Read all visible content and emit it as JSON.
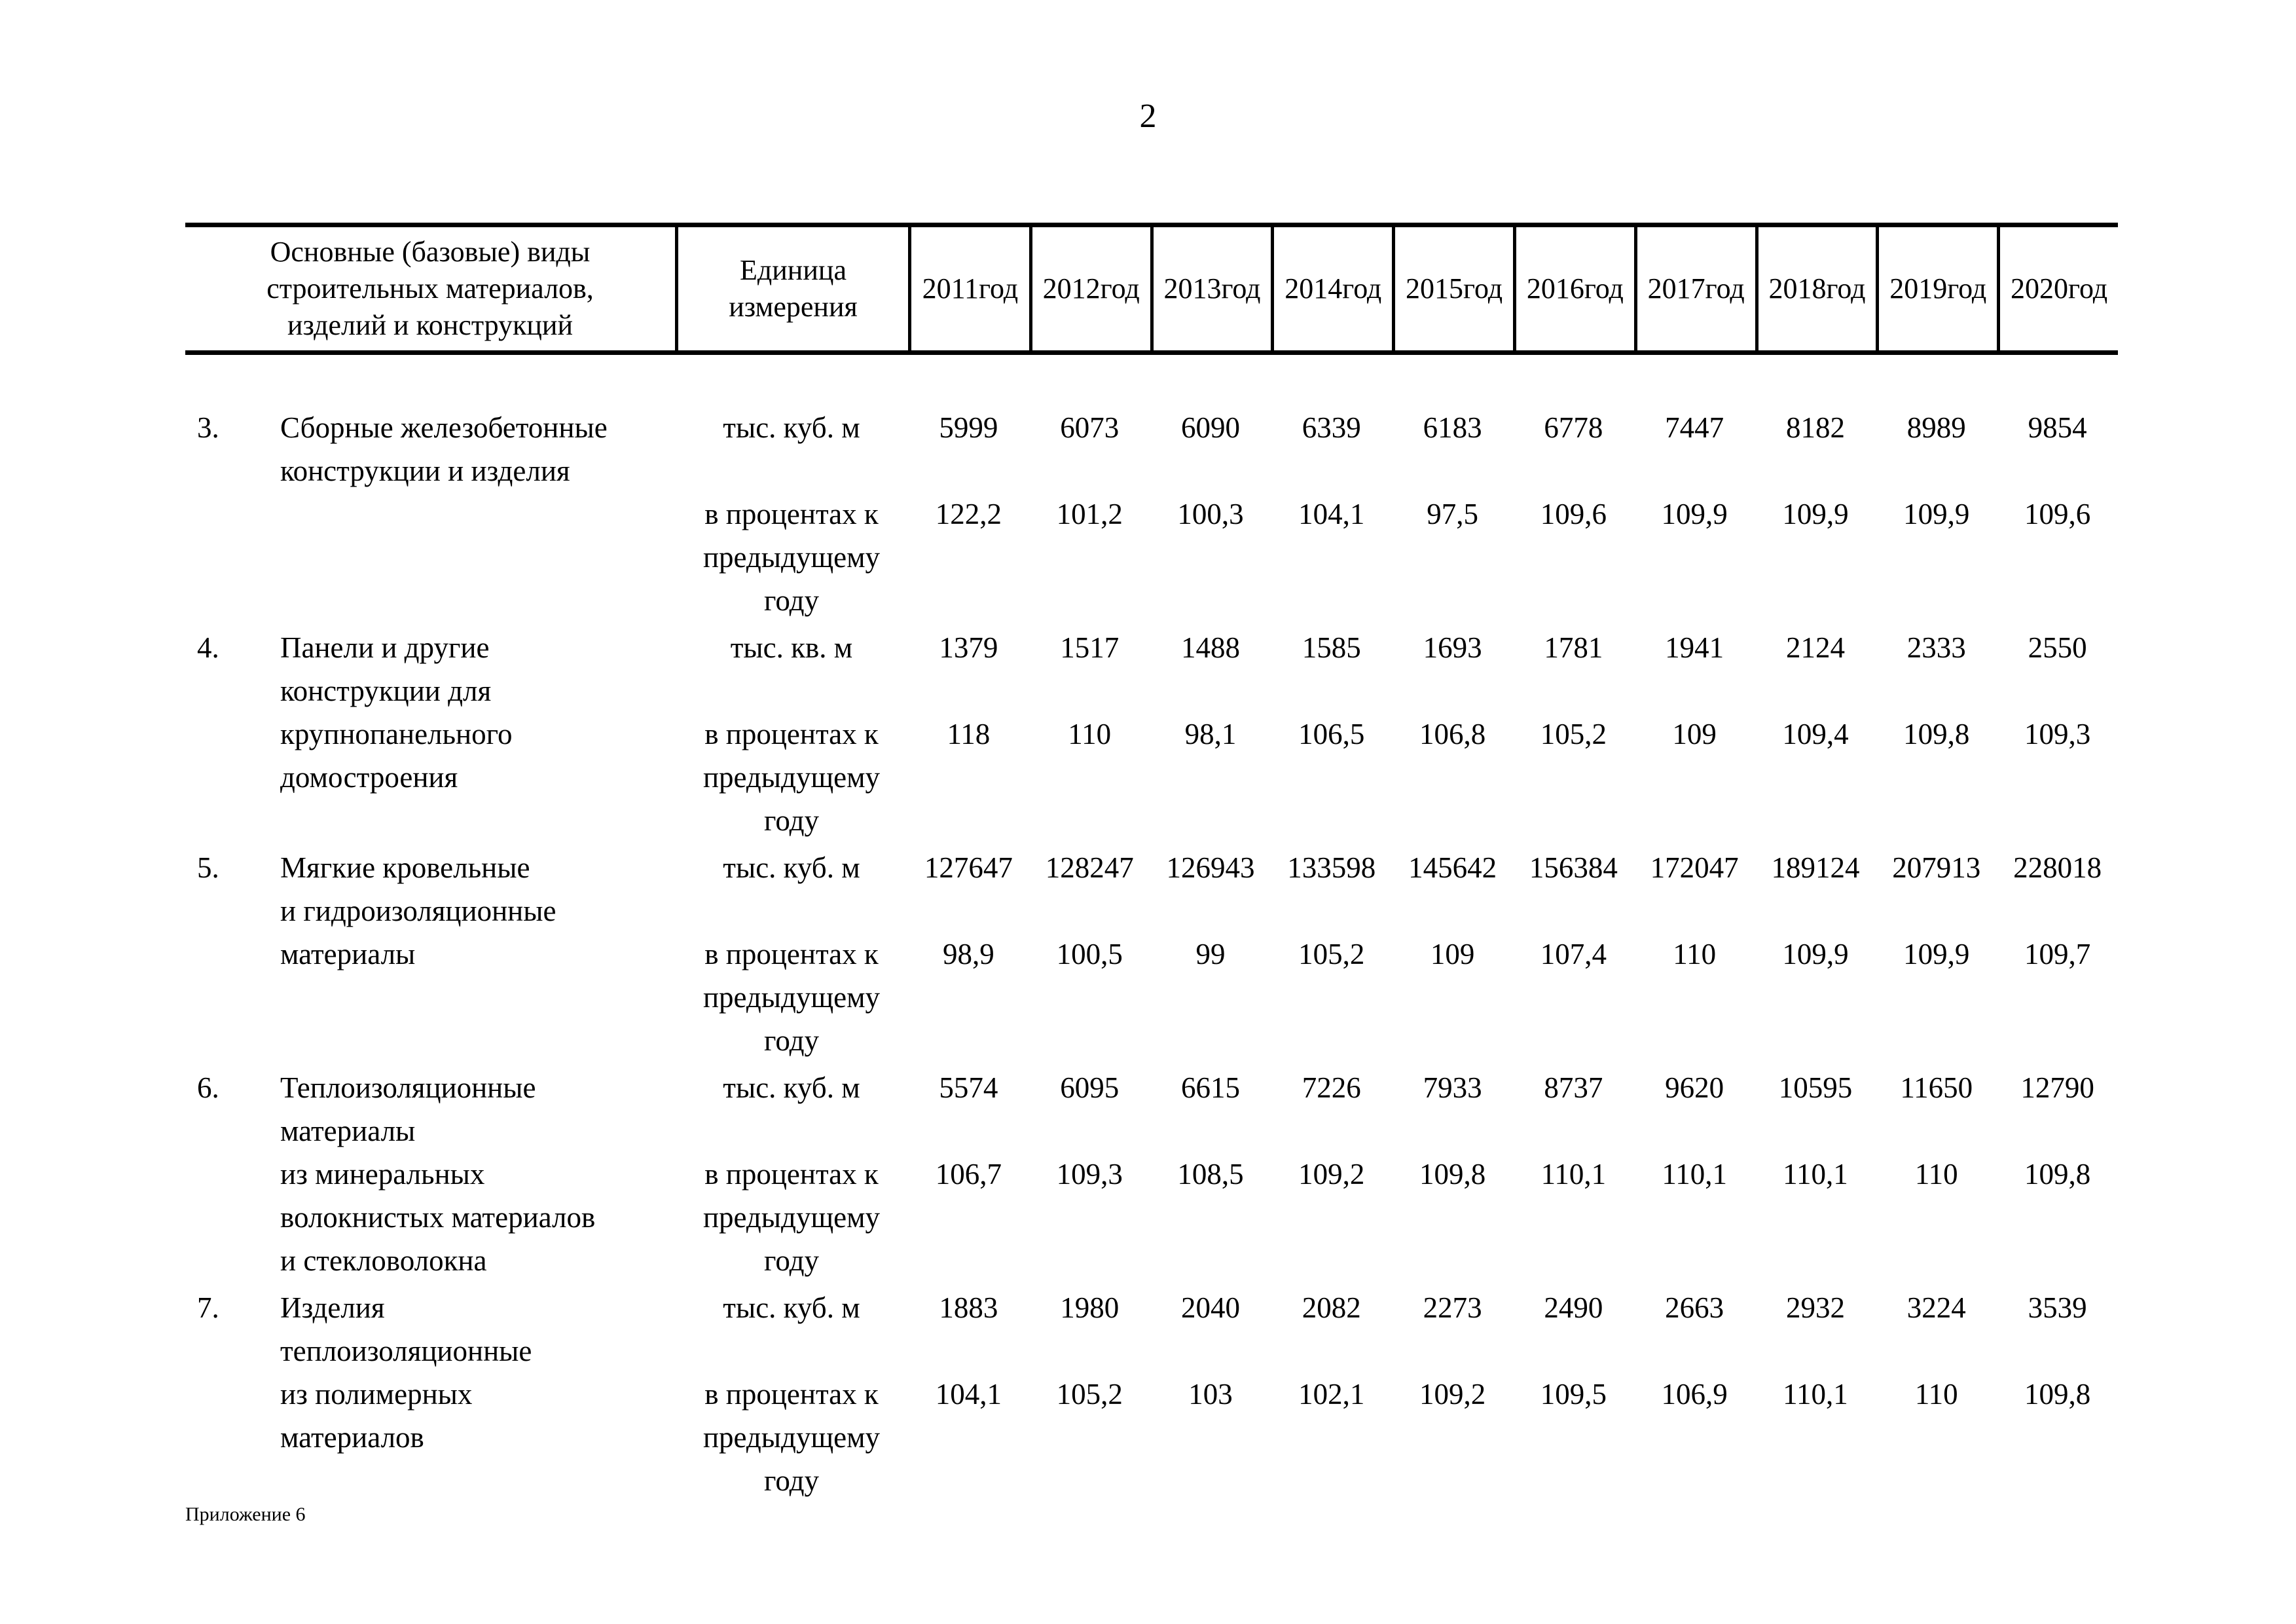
{
  "page": {
    "number": "2",
    "footer": "Приложение 6"
  },
  "table": {
    "header": {
      "name_col": "Основные (базовые) виды\nстроительных материалов,\nизделий и конструкций",
      "unit_col": "Единица\nизмерения",
      "year_label": "год",
      "years": [
        "2011",
        "2012",
        "2013",
        "2014",
        "2015",
        "2016",
        "2017",
        "2018",
        "2019",
        "2020"
      ]
    },
    "rows": [
      {
        "num": "3.",
        "name": "Сборные железобетонные\nконструкции и изделия",
        "unit_primary": "тыс. куб. м",
        "unit_secondary": "в процентах к\nпредыдущему\nгоду",
        "values_primary": [
          "5999",
          "6073",
          "6090",
          "6339",
          "6183",
          "6778",
          "7447",
          "8182",
          "8989",
          "9854"
        ],
        "values_secondary": [
          "122,2",
          "101,2",
          "100,3",
          "104,1",
          "97,5",
          "109,6",
          "109,9",
          "109,9",
          "109,9",
          "109,6"
        ]
      },
      {
        "num": "4.",
        "name": "Панели и другие\nконструкции для\nкрупнопанельного\nдомостроения",
        "unit_primary": "тыс. кв. м",
        "unit_secondary": "в процентах к\nпредыдущему\nгоду",
        "values_primary": [
          "1379",
          "1517",
          "1488",
          "1585",
          "1693",
          "1781",
          "1941",
          "2124",
          "2333",
          "2550"
        ],
        "values_secondary": [
          "118",
          "110",
          "98,1",
          "106,5",
          "106,8",
          "105,2",
          "109",
          "109,4",
          "109,8",
          "109,3"
        ]
      },
      {
        "num": "5.",
        "name": "Мягкие кровельные\nи гидроизоляционные\nматериалы",
        "unit_primary": "тыс. куб. м",
        "unit_secondary": "в процентах к\nпредыдущему\nгоду",
        "values_primary": [
          "127647",
          "128247",
          "126943",
          "133598",
          "145642",
          "156384",
          "172047",
          "189124",
          "207913",
          "228018"
        ],
        "values_secondary": [
          "98,9",
          "100,5",
          "99",
          "105,2",
          "109",
          "107,4",
          "110",
          "109,9",
          "109,9",
          "109,7"
        ]
      },
      {
        "num": "6.",
        "name": "Теплоизоляционные\nматериалы\nиз минеральных\nволокнистых материалов\nи стекловолокна",
        "unit_primary": "тыс. куб. м",
        "unit_secondary": "в процентах к\nпредыдущему\nгоду",
        "values_primary": [
          "5574",
          "6095",
          "6615",
          "7226",
          "7933",
          "8737",
          "9620",
          "10595",
          "11650",
          "12790"
        ],
        "values_secondary": [
          "106,7",
          "109,3",
          "108,5",
          "109,2",
          "109,8",
          "110,1",
          "110,1",
          "110,1",
          "110",
          "109,8"
        ]
      },
      {
        "num": "7.",
        "name": "Изделия\nтеплоизоляционные\nиз полимерных\nматериалов",
        "unit_primary": "тыс. куб. м",
        "unit_secondary": "в процентах к\nпредыдущему\nгоду",
        "values_primary": [
          "1883",
          "1980",
          "2040",
          "2082",
          "2273",
          "2490",
          "2663",
          "2932",
          "3224",
          "3539"
        ],
        "values_secondary": [
          "104,1",
          "105,2",
          "103",
          "102,1",
          "109,2",
          "109,5",
          "106,9",
          "110,1",
          "110",
          "109,8"
        ]
      }
    ]
  }
}
